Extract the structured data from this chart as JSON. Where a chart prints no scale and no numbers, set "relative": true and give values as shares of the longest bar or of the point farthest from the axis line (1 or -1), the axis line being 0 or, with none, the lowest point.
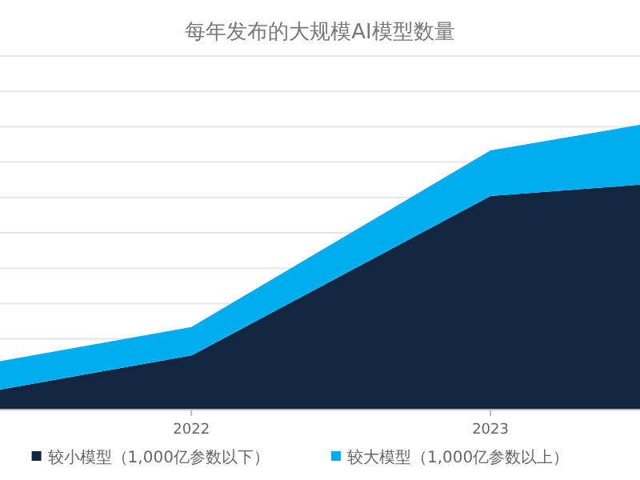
{
  "chart_data": {
    "type": "area",
    "title": "每年发布的大规模AI模型数量",
    "stacked": true,
    "relative": true,
    "x": [
      2021.36,
      2022,
      2023,
      2023.5
    ],
    "xlim": [
      2021.36,
      2023.5
    ],
    "xticks": [
      2022,
      2023
    ],
    "series": [
      {
        "name": "较小模型（1,000亿参数以下）",
        "color": "#13263f",
        "values": [
          0.07,
          0.19,
          0.75,
          0.79
        ]
      },
      {
        "name": "较大模型（1,000亿参数以上）",
        "color": "#00aeef",
        "values": [
          0.1,
          0.1,
          0.16,
          0.21
        ]
      }
    ],
    "grid": "y",
    "legend": "bottom"
  }
}
